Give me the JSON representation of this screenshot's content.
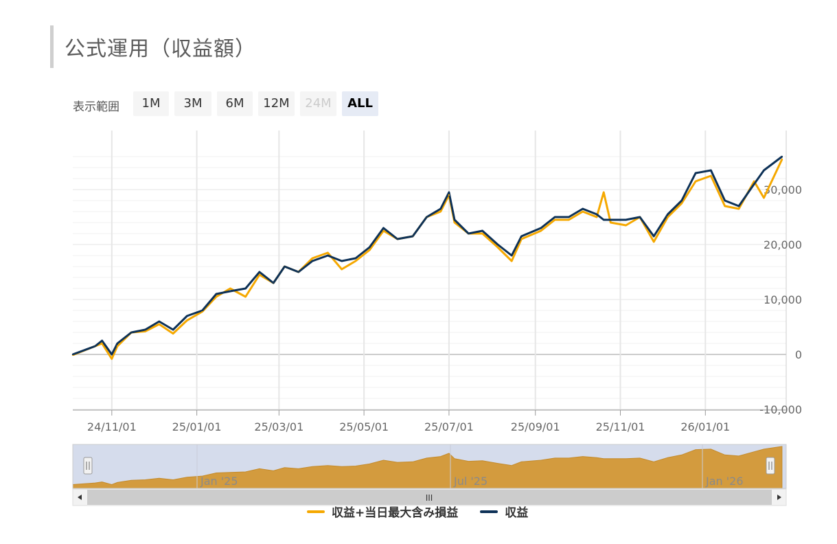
{
  "page": {
    "title": "公式運用（収益額）"
  },
  "range_selector": {
    "label": "表示範囲",
    "buttons": [
      {
        "label": "1M",
        "state": "normal"
      },
      {
        "label": "3M",
        "state": "normal"
      },
      {
        "label": "6M",
        "state": "normal"
      },
      {
        "label": "12M",
        "state": "normal"
      },
      {
        "label": "24M",
        "state": "disabled"
      },
      {
        "label": "ALL",
        "state": "active"
      }
    ]
  },
  "navigator": {
    "labels": [
      "Jan '25",
      "Jul '25",
      "Jan '26"
    ],
    "scrollbar_grip": "III"
  },
  "colors": {
    "series1": "#f5a800",
    "series2": "#0d3157",
    "navigator_fill": "#d39b3e",
    "navigator_mask": "#d5dcec"
  },
  "chart_data": {
    "type": "line",
    "x_tick_labels": [
      "24/11/01",
      "25/01/01",
      "25/03/01",
      "25/05/01",
      "25/07/01",
      "25/09/01",
      "25/11/01",
      "26/01/01"
    ],
    "y_tick_labels": [
      "-10,000",
      "0",
      "10,000",
      "20,000",
      "30,000"
    ],
    "ylim": [
      -10000,
      36000
    ],
    "y_axis_side": "right",
    "grid": true,
    "legend_position": "bottom",
    "series": [
      {
        "name": "収益+当日最大含み損益",
        "x": [
          "24/10/04",
          "24/10/20",
          "24/10/25",
          "24/11/01",
          "24/11/05",
          "24/11/15",
          "24/11/25",
          "24/12/05",
          "24/12/15",
          "24/12/25",
          "25/01/05",
          "25/01/15",
          "25/01/25",
          "25/02/05",
          "25/02/15",
          "25/02/25",
          "25/03/05",
          "25/03/15",
          "25/03/25",
          "25/04/05",
          "25/04/15",
          "25/04/25",
          "25/05/05",
          "25/05/15",
          "25/05/25",
          "25/06/05",
          "25/06/15",
          "25/06/25",
          "25/07/01",
          "25/07/05",
          "25/07/15",
          "25/07/25",
          "25/08/05",
          "25/08/15",
          "25/08/22",
          "25/09/05",
          "25/09/15",
          "25/09/25",
          "25/10/05",
          "25/10/15",
          "25/10/20",
          "25/10/25",
          "25/11/05",
          "25/11/15",
          "25/11/25",
          "25/12/05",
          "25/12/15",
          "25/12/25",
          "26/01/05",
          "26/01/15",
          "26/01/25",
          "26/02/05",
          "26/02/12",
          "26/02/25"
        ],
        "y": [
          -100,
          1500,
          2000,
          -800,
          1500,
          4000,
          4200,
          5500,
          3800,
          6200,
          7800,
          10500,
          12000,
          10500,
          14500,
          13000,
          16000,
          15000,
          17500,
          18500,
          15500,
          17000,
          19000,
          22500,
          21000,
          21500,
          25000,
          26000,
          29000,
          24000,
          22000,
          22000,
          19500,
          17000,
          21000,
          22500,
          24500,
          24500,
          26000,
          25000,
          29500,
          24000,
          23500,
          25000,
          20500,
          25000,
          27500,
          31500,
          32500,
          27000,
          26500,
          31500,
          28500,
          35500
        ]
      },
      {
        "name": "収益",
        "x": [
          "24/10/04",
          "24/10/20",
          "24/10/25",
          "24/11/01",
          "24/11/05",
          "24/11/15",
          "24/11/25",
          "24/12/05",
          "24/12/15",
          "24/12/25",
          "25/01/05",
          "25/01/15",
          "25/01/25",
          "25/02/05",
          "25/02/15",
          "25/02/25",
          "25/03/05",
          "25/03/15",
          "25/03/25",
          "25/04/05",
          "25/04/15",
          "25/04/25",
          "25/05/05",
          "25/05/15",
          "25/05/25",
          "25/06/05",
          "25/06/15",
          "25/06/25",
          "25/07/01",
          "25/07/05",
          "25/07/15",
          "25/07/25",
          "25/08/05",
          "25/08/15",
          "25/08/22",
          "25/09/05",
          "25/09/15",
          "25/09/25",
          "25/10/05",
          "25/10/15",
          "25/10/20",
          "25/10/25",
          "25/11/05",
          "25/11/15",
          "25/11/25",
          "25/12/05",
          "25/12/15",
          "25/12/25",
          "26/01/05",
          "26/01/15",
          "26/01/25",
          "26/02/05",
          "26/02/12",
          "26/02/25"
        ],
        "y": [
          0,
          1500,
          2500,
          0,
          2000,
          4000,
          4500,
          6000,
          4500,
          7000,
          8000,
          11000,
          11500,
          12000,
          15000,
          13000,
          16000,
          15000,
          17000,
          18000,
          17000,
          17500,
          19500,
          23000,
          21000,
          21500,
          25000,
          26500,
          29500,
          24500,
          22000,
          22500,
          20000,
          18000,
          21500,
          23000,
          25000,
          25000,
          26500,
          25500,
          24500,
          24500,
          24500,
          25000,
          21500,
          25500,
          28000,
          33000,
          33500,
          28000,
          27000,
          31000,
          33500,
          36000
        ]
      }
    ]
  }
}
